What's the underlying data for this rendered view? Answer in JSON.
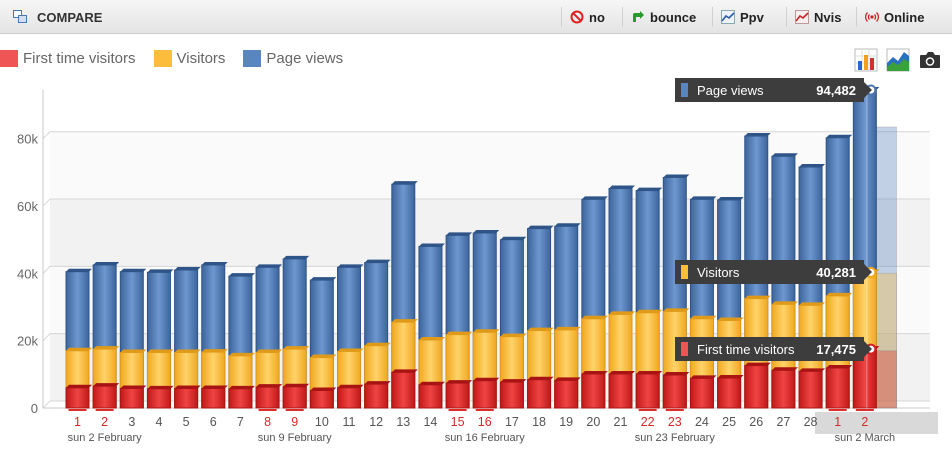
{
  "toolbar": {
    "title": "COMPARE",
    "buttons": [
      {
        "label": "no",
        "icon": "no-entry-icon",
        "color": "#d22"
      },
      {
        "label": "bounce",
        "icon": "bounce-arrow-icon",
        "color": "#2a9a2a"
      },
      {
        "label": "Ppv",
        "icon": "line-chart-icon",
        "color": "#2a5aa8"
      },
      {
        "label": "Nvis",
        "icon": "line-chart-red-icon",
        "color": "#c22"
      },
      {
        "label": "Online",
        "icon": "broadcast-icon",
        "color": "#c22"
      }
    ]
  },
  "legend": [
    {
      "label": "First time visitors",
      "color": "#ef5555"
    },
    {
      "label": "Visitors",
      "color": "#fcbc3c"
    },
    {
      "label": "Page views",
      "color": "#5a86c0"
    }
  ],
  "tools": [
    "bar-chart-icon",
    "area-chart-icon",
    "camera-icon"
  ],
  "tooltips": [
    {
      "label": "Page views",
      "value": "94,482",
      "color": "#5a86c0"
    },
    {
      "label": "Visitors",
      "value": "40,281",
      "color": "#fcbc3c"
    },
    {
      "label": "First time visitors",
      "value": "17,475",
      "color": "#ef5555"
    }
  ],
  "chart_data": {
    "type": "bar",
    "categories": [
      "1",
      "2",
      "3",
      "4",
      "5",
      "6",
      "7",
      "8",
      "9",
      "10",
      "11",
      "12",
      "13",
      "14",
      "15",
      "16",
      "17",
      "18",
      "19",
      "20",
      "21",
      "22",
      "23",
      "24",
      "25",
      "26",
      "27",
      "28",
      "1",
      "2"
    ],
    "weekend_categories": [
      0,
      1,
      7,
      8,
      14,
      15,
      21,
      22,
      28,
      29
    ],
    "week_labels": [
      {
        "label": "sun 2 February",
        "index": 1
      },
      {
        "label": "sun 9 February",
        "index": 8
      },
      {
        "label": "sun 16 February",
        "index": 15
      },
      {
        "label": "sun 23 February",
        "index": 22
      },
      {
        "label": "sun 2 March",
        "index": 29
      }
    ],
    "yticks": [
      "0",
      "20k",
      "40k",
      "60k",
      "80k"
    ],
    "ylim": [
      0,
      95000
    ],
    "series": [
      {
        "name": "Page views",
        "color": "#4d78b0",
        "values": [
          40500,
          42500,
          40500,
          40300,
          41000,
          42500,
          39200,
          41800,
          44300,
          38000,
          41800,
          43200,
          66500,
          48000,
          51300,
          52000,
          50000,
          53300,
          54000,
          62000,
          65200,
          64600,
          68500,
          62000,
          61800,
          80800,
          74800,
          71600,
          80300,
          94482
        ]
      },
      {
        "name": "Visitors",
        "color": "#fcbc3c",
        "values": [
          17000,
          17500,
          16500,
          16500,
          16500,
          16600,
          15500,
          16500,
          17500,
          15000,
          16800,
          18500,
          25500,
          20200,
          21800,
          22500,
          21200,
          23000,
          23200,
          26500,
          27800,
          28300,
          28700,
          26500,
          26000,
          32500,
          30800,
          30500,
          33300,
          40281
        ]
      },
      {
        "name": "First time visitors",
        "color": "#e02a2a",
        "values": [
          6000,
          6500,
          5800,
          5700,
          5800,
          5800,
          5700,
          6200,
          6300,
          5200,
          6000,
          7100,
          10600,
          6900,
          7400,
          8100,
          7700,
          8400,
          8200,
          10100,
          10100,
          10100,
          9800,
          8800,
          8900,
          12600,
          11200,
          10900,
          11900,
          17475
        ]
      }
    ],
    "ghost_values": [
      83500,
      40000,
      17000
    ],
    "grid": true
  }
}
